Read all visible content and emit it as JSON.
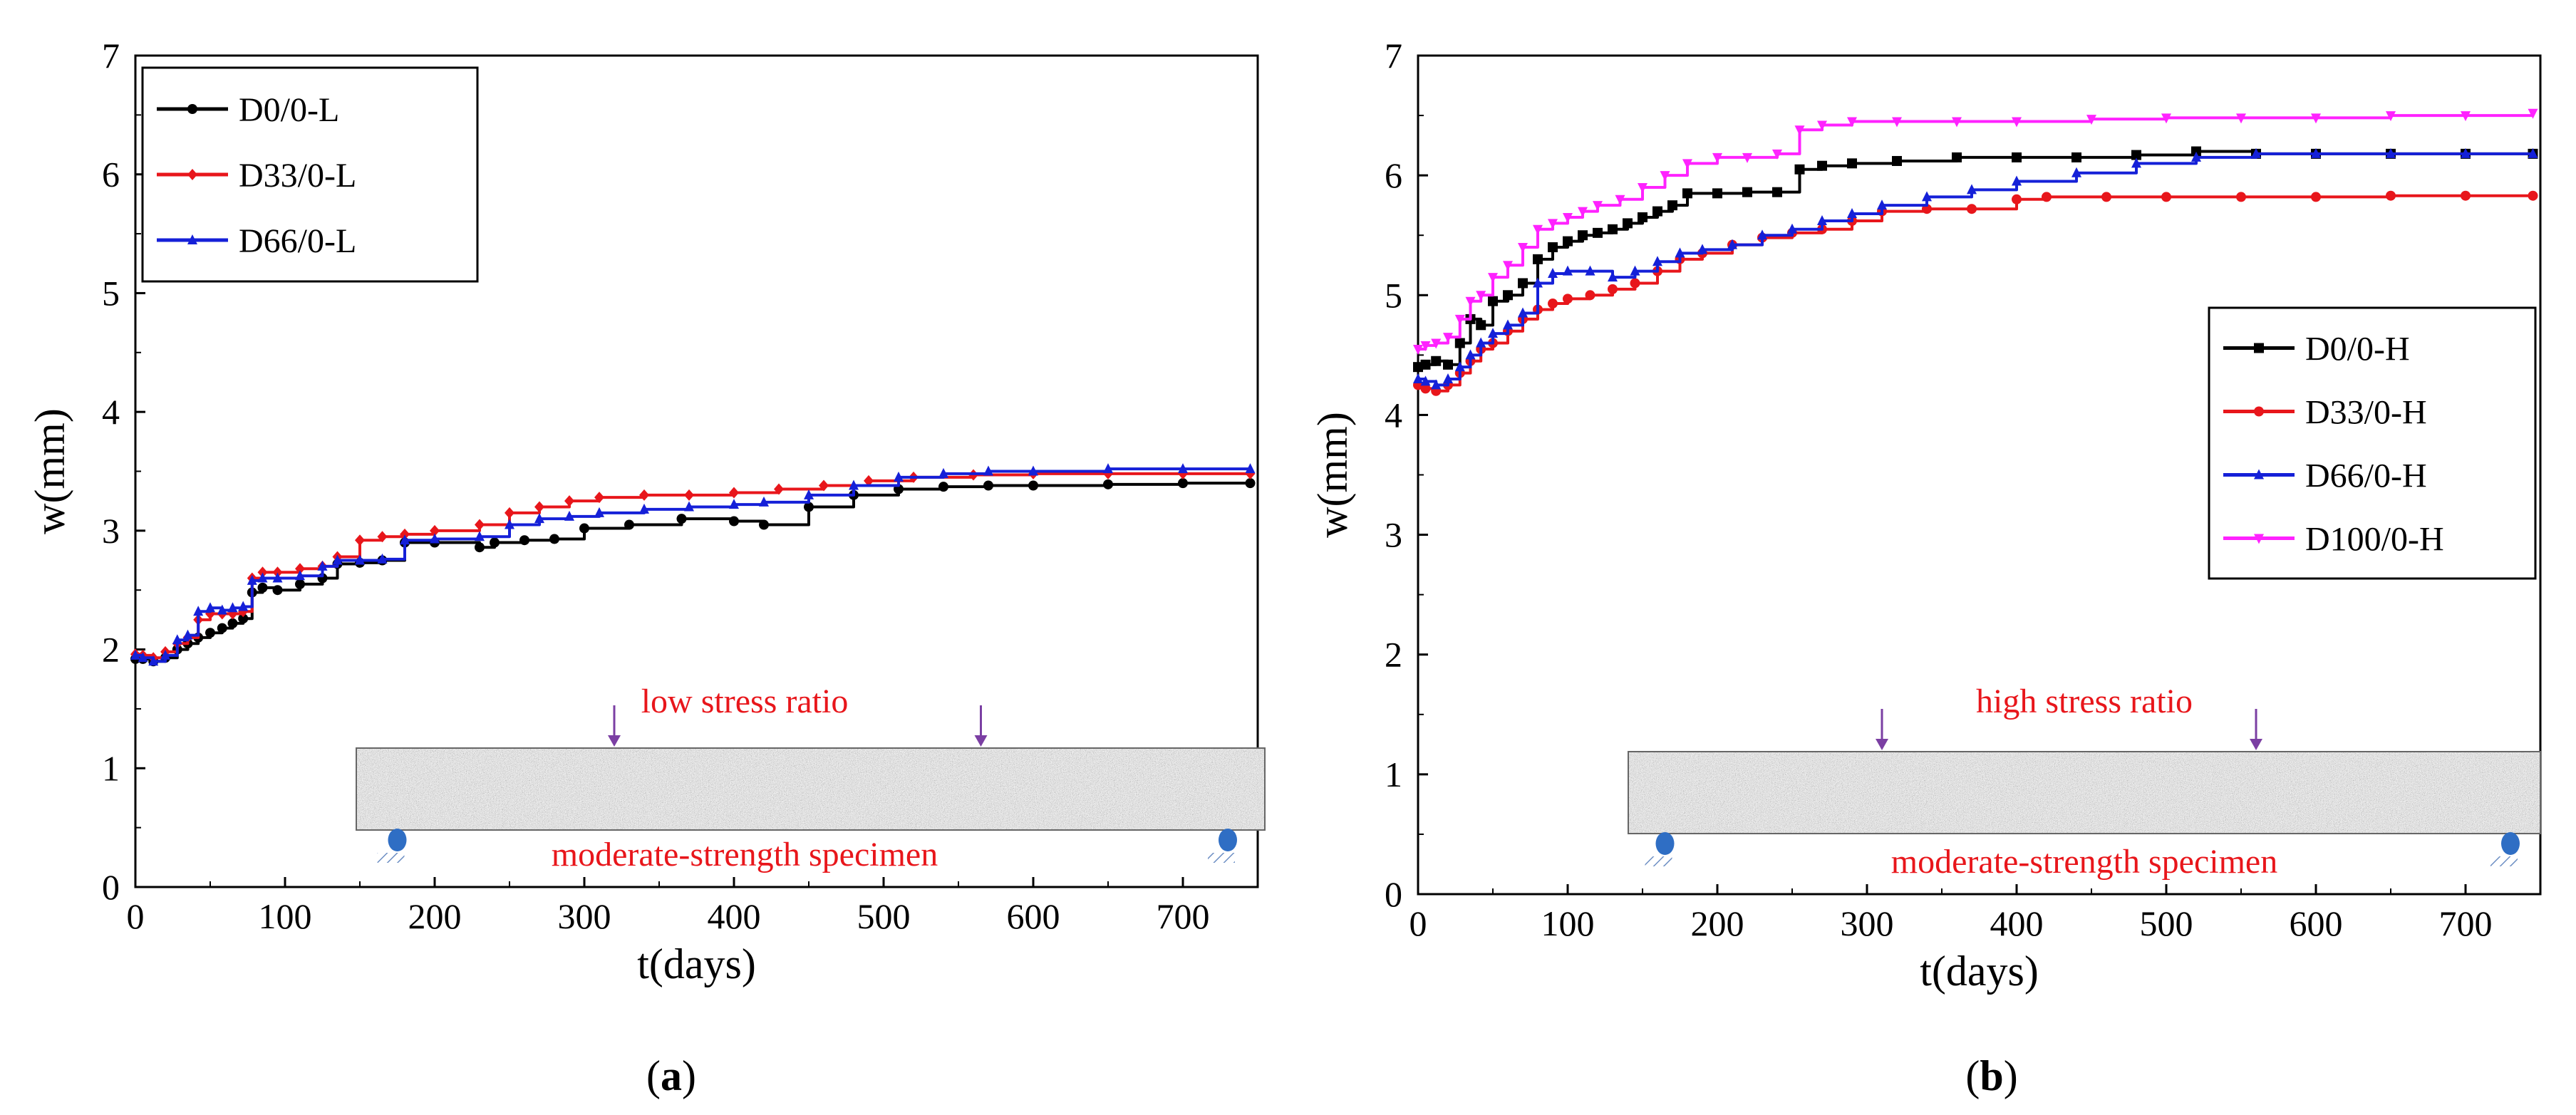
{
  "chart_data": [
    {
      "type": "line",
      "panel_label": "a",
      "xlabel": "t(days)",
      "ylabel": "w(mm)",
      "xlim": [
        0,
        750
      ],
      "ylim": [
        0,
        7
      ],
      "xticks": [
        0,
        100,
        200,
        300,
        400,
        500,
        600,
        700
      ],
      "yticks": [
        0,
        1,
        2,
        3,
        4,
        5,
        6,
        7
      ],
      "legend": "top-left",
      "annotations": {
        "stress": "low stress ratio",
        "specimen": "moderate-strength  specimen"
      },
      "series": [
        {
          "name": "D0/0-L",
          "color": "#000000",
          "marker": "circle",
          "x": [
            0,
            5,
            12,
            20,
            28,
            35,
            42,
            50,
            58,
            65,
            72,
            78,
            85,
            95,
            110,
            125,
            135,
            150,
            165,
            180,
            200,
            230,
            240,
            260,
            280,
            300,
            330,
            365,
            400,
            420,
            450,
            480,
            510,
            540,
            570,
            600,
            650,
            700,
            745
          ],
          "y": [
            1.92,
            1.92,
            1.9,
            1.93,
            2.0,
            2.05,
            2.1,
            2.14,
            2.18,
            2.22,
            2.26,
            2.48,
            2.52,
            2.5,
            2.55,
            2.6,
            2.72,
            2.73,
            2.75,
            2.9,
            2.9,
            2.86,
            2.9,
            2.92,
            2.93,
            3.02,
            3.05,
            3.1,
            3.08,
            3.05,
            3.2,
            3.3,
            3.35,
            3.37,
            3.38,
            3.38,
            3.39,
            3.4,
            3.4
          ]
        },
        {
          "name": "D33/0-L",
          "color": "#e8161b",
          "marker": "diamond",
          "x": [
            0,
            5,
            12,
            20,
            28,
            35,
            42,
            50,
            58,
            65,
            72,
            78,
            85,
            95,
            110,
            125,
            135,
            150,
            165,
            180,
            200,
            230,
            250,
            270,
            290,
            310,
            340,
            370,
            400,
            430,
            460,
            490,
            520,
            560,
            600,
            650,
            700,
            745
          ],
          "y": [
            1.96,
            1.95,
            1.93,
            1.98,
            2.05,
            2.1,
            2.25,
            2.3,
            2.3,
            2.3,
            2.32,
            2.6,
            2.65,
            2.65,
            2.68,
            2.7,
            2.78,
            2.92,
            2.95,
            2.97,
            3.0,
            3.05,
            3.15,
            3.2,
            3.25,
            3.28,
            3.3,
            3.3,
            3.32,
            3.35,
            3.38,
            3.42,
            3.45,
            3.47,
            3.48,
            3.48,
            3.48,
            3.48
          ]
        },
        {
          "name": "D66/0-L",
          "color": "#1520d8",
          "marker": "triangle",
          "x": [
            0,
            5,
            12,
            20,
            28,
            35,
            42,
            50,
            58,
            65,
            72,
            78,
            85,
            95,
            110,
            125,
            135,
            150,
            165,
            180,
            200,
            230,
            250,
            270,
            290,
            310,
            340,
            370,
            400,
            420,
            450,
            480,
            510,
            540,
            570,
            600,
            650,
            700,
            745
          ],
          "y": [
            1.95,
            1.93,
            1.9,
            1.95,
            2.08,
            2.12,
            2.32,
            2.35,
            2.33,
            2.35,
            2.36,
            2.58,
            2.6,
            2.6,
            2.62,
            2.7,
            2.75,
            2.75,
            2.76,
            2.92,
            2.93,
            2.95,
            3.05,
            3.1,
            3.12,
            3.15,
            3.18,
            3.2,
            3.22,
            3.24,
            3.3,
            3.38,
            3.45,
            3.48,
            3.5,
            3.5,
            3.52,
            3.52,
            3.52
          ]
        }
      ]
    },
    {
      "type": "line",
      "panel_label": "b",
      "xlabel": "t(days)",
      "ylabel": "w(mm)",
      "xlim": [
        0,
        750
      ],
      "ylim": [
        0,
        7
      ],
      "xticks": [
        0,
        100,
        200,
        300,
        400,
        500,
        600,
        700
      ],
      "yticks": [
        0,
        1,
        2,
        3,
        4,
        5,
        6,
        7
      ],
      "legend": "center-right",
      "annotations": {
        "stress": "high stress ratio",
        "specimen": "moderate-strength  specimen"
      },
      "series": [
        {
          "name": "D0/0-H",
          "color": "#000000",
          "marker": "square",
          "x": [
            0,
            5,
            12,
            20,
            28,
            35,
            42,
            50,
            60,
            70,
            80,
            90,
            100,
            110,
            120,
            130,
            140,
            150,
            160,
            170,
            180,
            200,
            220,
            240,
            255,
            270,
            290,
            320,
            360,
            400,
            440,
            480,
            520,
            560,
            600,
            650,
            700,
            745
          ],
          "y": [
            4.4,
            4.42,
            4.45,
            4.42,
            4.6,
            4.8,
            4.75,
            4.95,
            5.0,
            5.1,
            5.3,
            5.4,
            5.45,
            5.5,
            5.52,
            5.55,
            5.6,
            5.65,
            5.7,
            5.75,
            5.85,
            5.85,
            5.86,
            5.86,
            6.05,
            6.08,
            6.1,
            6.12,
            6.15,
            6.15,
            6.15,
            6.17,
            6.2,
            6.18,
            6.18,
            6.18,
            6.18,
            6.18
          ]
        },
        {
          "name": "D33/0-H",
          "color": "#e8161b",
          "marker": "circle",
          "x": [
            0,
            5,
            12,
            20,
            28,
            35,
            42,
            50,
            60,
            70,
            80,
            90,
            100,
            115,
            130,
            145,
            160,
            175,
            190,
            210,
            230,
            250,
            270,
            290,
            310,
            340,
            370,
            400,
            420,
            460,
            500,
            550,
            600,
            650,
            700,
            745
          ],
          "y": [
            4.25,
            4.22,
            4.2,
            4.25,
            4.35,
            4.45,
            4.55,
            4.6,
            4.7,
            4.8,
            4.88,
            4.93,
            4.97,
            5.0,
            5.05,
            5.1,
            5.2,
            5.3,
            5.35,
            5.42,
            5.48,
            5.52,
            5.55,
            5.62,
            5.7,
            5.72,
            5.72,
            5.8,
            5.82,
            5.82,
            5.82,
            5.82,
            5.82,
            5.83,
            5.83,
            5.83
          ]
        },
        {
          "name": "D66/0-H",
          "color": "#1520d8",
          "marker": "triangle",
          "x": [
            0,
            5,
            12,
            20,
            28,
            35,
            42,
            50,
            60,
            70,
            80,
            90,
            100,
            115,
            130,
            145,
            160,
            175,
            190,
            210,
            230,
            250,
            270,
            290,
            310,
            340,
            370,
            400,
            440,
            480,
            520,
            560,
            600,
            650,
            700,
            745
          ],
          "y": [
            4.3,
            4.28,
            4.25,
            4.3,
            4.4,
            4.5,
            4.6,
            4.68,
            4.75,
            4.85,
            5.1,
            5.18,
            5.2,
            5.2,
            5.15,
            5.2,
            5.28,
            5.35,
            5.38,
            5.42,
            5.5,
            5.55,
            5.62,
            5.68,
            5.75,
            5.82,
            5.88,
            5.95,
            6.02,
            6.1,
            6.15,
            6.18,
            6.18,
            6.18,
            6.18,
            6.18
          ]
        },
        {
          "name": "D100/0-H",
          "color": "#ff22ff",
          "marker": "triangle-down",
          "x": [
            0,
            5,
            12,
            20,
            28,
            35,
            42,
            50,
            60,
            70,
            80,
            90,
            100,
            110,
            120,
            135,
            150,
            165,
            180,
            200,
            220,
            240,
            255,
            270,
            290,
            320,
            360,
            400,
            450,
            500,
            550,
            600,
            650,
            700,
            745
          ],
          "y": [
            4.55,
            4.58,
            4.6,
            4.65,
            4.8,
            4.95,
            5.0,
            5.15,
            5.25,
            5.4,
            5.55,
            5.6,
            5.65,
            5.7,
            5.75,
            5.8,
            5.9,
            6.0,
            6.1,
            6.15,
            6.15,
            6.18,
            6.38,
            6.42,
            6.45,
            6.45,
            6.45,
            6.45,
            6.47,
            6.48,
            6.48,
            6.48,
            6.5,
            6.5,
            6.52
          ]
        }
      ]
    }
  ]
}
